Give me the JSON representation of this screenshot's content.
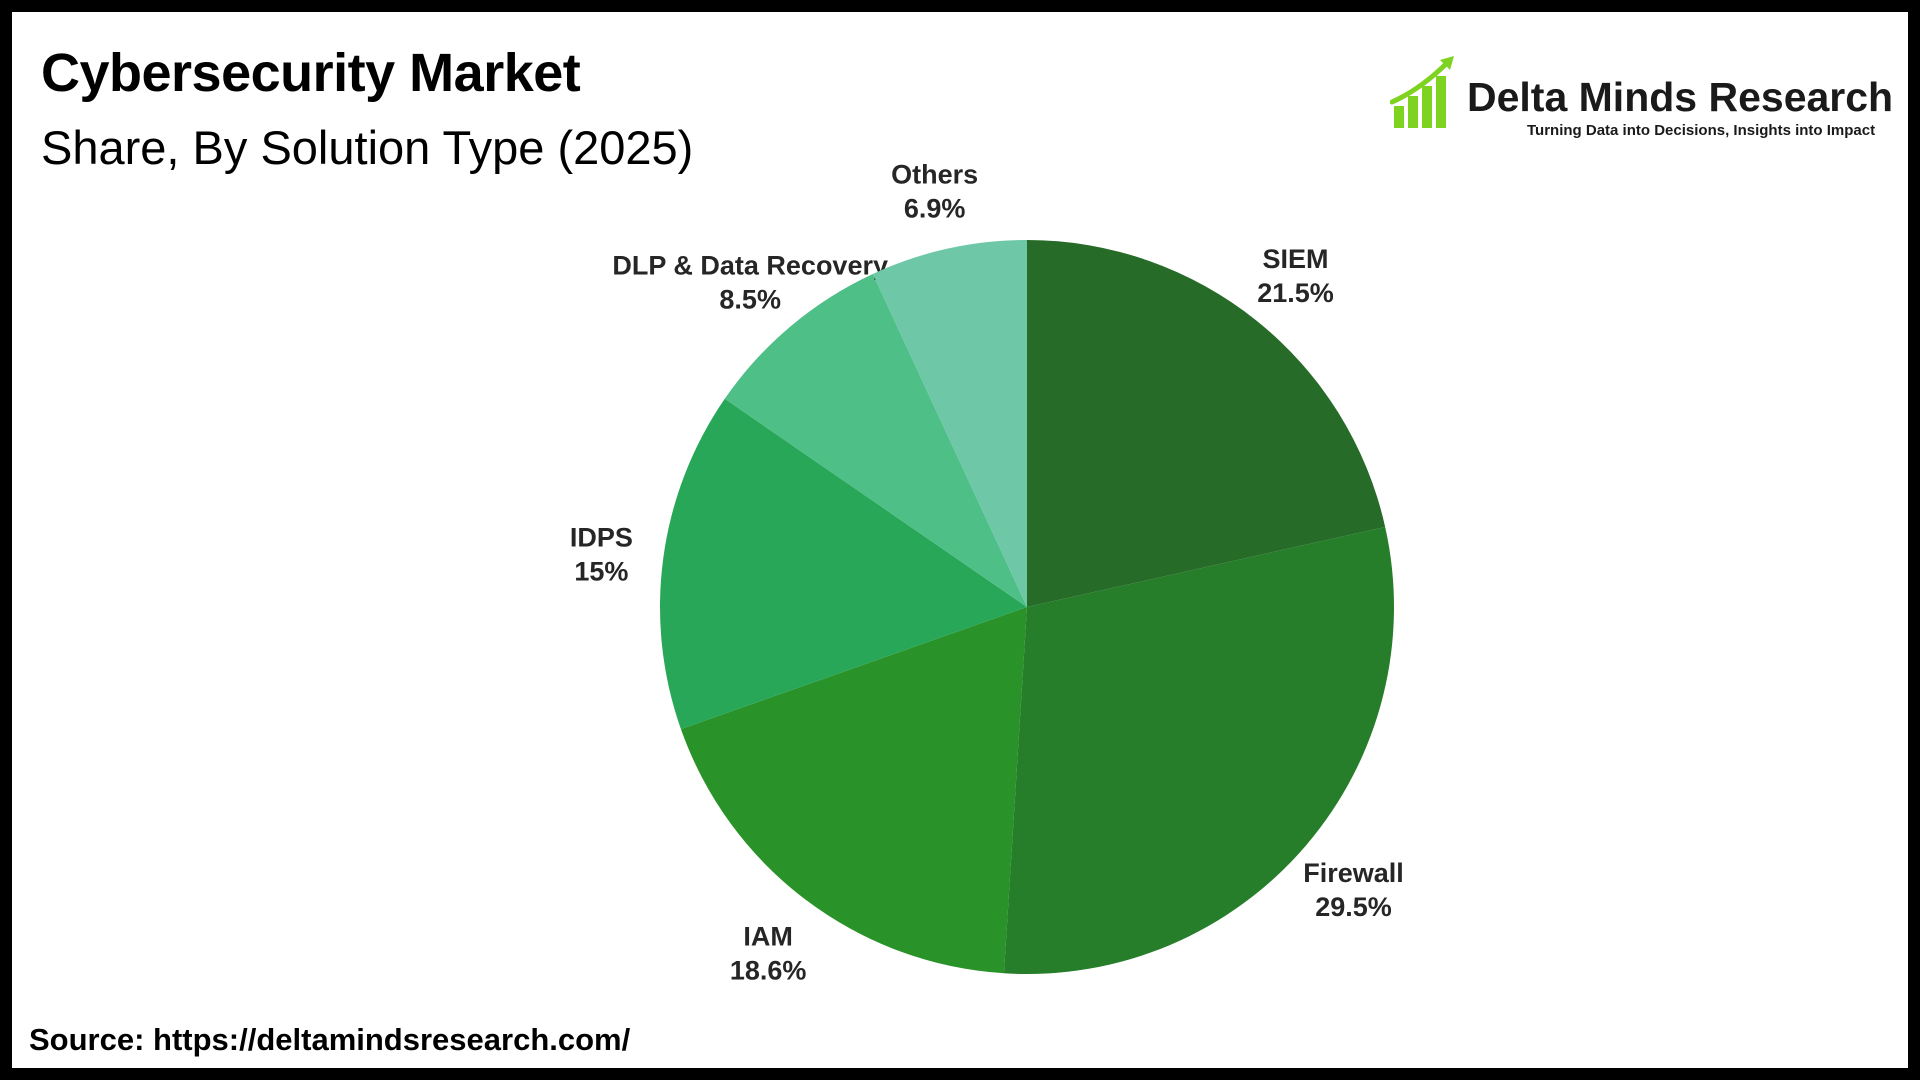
{
  "header": {
    "title": "Cybersecurity Market",
    "subtitle": "Share, By Solution Type (2025)"
  },
  "logo": {
    "name": "Delta Minds Research",
    "tagline": "Turning Data into Decisions, Insights into Impact",
    "icon": "bar-chart-growth-icon",
    "color": "#7ed321"
  },
  "footer": {
    "source": "Source: https://deltamindsresearch.com/"
  },
  "chart_data": {
    "type": "pie",
    "title": "Cybersecurity Market",
    "subtitle": "Share, By Solution Type (2025)",
    "start": "12 o'clock",
    "direction": "clockwise",
    "legend": "none",
    "slices": [
      {
        "label": "SIEM",
        "value": 21.5,
        "value_label": "21.5%",
        "color": "#266b27"
      },
      {
        "label": "Firewall",
        "value": 29.5,
        "value_label": "29.5%",
        "color": "#267d2a"
      },
      {
        "label": "IAM",
        "value": 18.6,
        "value_label": "18.6%",
        "color": "#299228"
      },
      {
        "label": "IDPS",
        "value": 15,
        "value_label": "15%",
        "color": "#29a758"
      },
      {
        "label": "DLP & Data Recovery",
        "value": 8.5,
        "value_label": "8.5%",
        "color": "#4ebf87"
      },
      {
        "label": "Others",
        "value": 6.9,
        "value_label": "6.9%",
        "color": "#6ec8a8"
      }
    ]
  }
}
